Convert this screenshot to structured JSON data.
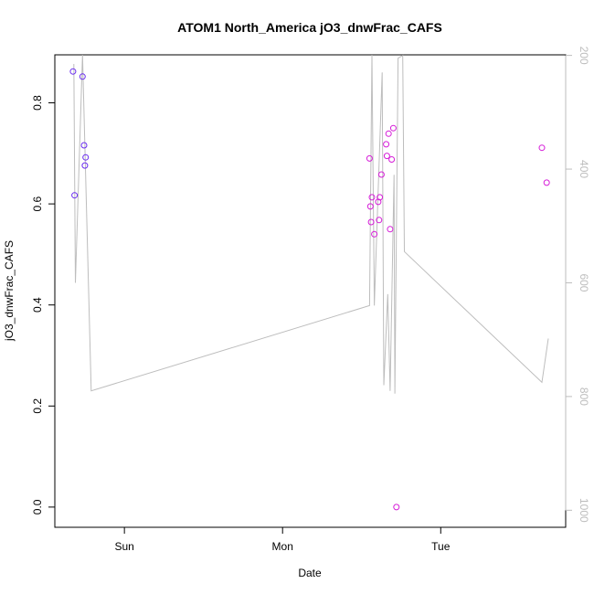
{
  "chart_data": {
    "type": "scatter",
    "title": "ATOM1 North_America jO3_dnwFrac_CAFS",
    "xlabel": "Date",
    "ylabel": "jO3_dnwFrac_CAFS",
    "x_ticks": [
      {
        "label": "Sun",
        "value": 1.0
      },
      {
        "label": "Mon",
        "value": 2.0
      },
      {
        "label": "Tue",
        "value": 3.0
      }
    ],
    "xlim": [
      0.56,
      3.79
    ],
    "ylim": [
      -0.04,
      0.895
    ],
    "y_ticks": [
      0.0,
      0.2,
      0.4,
      0.6,
      0.8
    ],
    "right_axis": {
      "ylim": [
        1030,
        199
      ],
      "ticks": [
        200,
        400,
        600,
        800,
        1000
      ],
      "color": "#bdbdbd"
    },
    "points": [
      {
        "x": 0.675,
        "y": 0.862,
        "color": "#6a2cf0"
      },
      {
        "x": 0.685,
        "y": 0.617,
        "color": "#6a2cf0"
      },
      {
        "x": 0.735,
        "y": 0.852,
        "color": "#6a2cf0"
      },
      {
        "x": 0.745,
        "y": 0.716,
        "color": "#6a2cf0"
      },
      {
        "x": 0.755,
        "y": 0.692,
        "color": "#6a2cf0"
      },
      {
        "x": 0.75,
        "y": 0.676,
        "color": "#6a2cf0"
      },
      {
        "x": 2.55,
        "y": 0.69,
        "color": "#d61cd8"
      },
      {
        "x": 2.555,
        "y": 0.595,
        "color": "#d61cd8"
      },
      {
        "x": 2.56,
        "y": 0.564,
        "color": "#d61cd8"
      },
      {
        "x": 2.565,
        "y": 0.613,
        "color": "#d61cd8"
      },
      {
        "x": 2.58,
        "y": 0.54,
        "color": "#d61cd8"
      },
      {
        "x": 2.605,
        "y": 0.604,
        "color": "#d61cd8"
      },
      {
        "x": 2.615,
        "y": 0.613,
        "color": "#d61cd8"
      },
      {
        "x": 2.61,
        "y": 0.568,
        "color": "#d61cd8"
      },
      {
        "x": 2.625,
        "y": 0.658,
        "color": "#d61cd8"
      },
      {
        "x": 2.655,
        "y": 0.718,
        "color": "#d61cd8"
      },
      {
        "x": 2.66,
        "y": 0.695,
        "color": "#d61cd8"
      },
      {
        "x": 2.67,
        "y": 0.739,
        "color": "#d61cd8"
      },
      {
        "x": 2.68,
        "y": 0.55,
        "color": "#d61cd8"
      },
      {
        "x": 2.69,
        "y": 0.688,
        "color": "#d61cd8"
      },
      {
        "x": 2.7,
        "y": 0.75,
        "color": "#d61cd8"
      },
      {
        "x": 2.72,
        "y": 0.0,
        "color": "#d61cd8"
      },
      {
        "x": 3.64,
        "y": 0.711,
        "color": "#d61cd8"
      },
      {
        "x": 3.67,
        "y": 0.642,
        "color": "#d61cd8"
      }
    ],
    "pressure_line": [
      [
        0.68,
        215
      ],
      [
        0.69,
        600
      ],
      [
        0.735,
        199
      ],
      [
        0.79,
        790
      ],
      [
        2.55,
        640
      ],
      [
        2.565,
        199
      ],
      [
        2.58,
        640
      ],
      [
        2.63,
        230
      ],
      [
        2.64,
        780
      ],
      [
        2.665,
        620
      ],
      [
        2.68,
        790
      ],
      [
        2.705,
        410
      ],
      [
        2.71,
        795
      ],
      [
        2.73,
        205
      ],
      [
        2.76,
        200
      ],
      [
        2.77,
        545
      ],
      [
        3.64,
        775
      ],
      [
        3.68,
        698
      ]
    ]
  }
}
